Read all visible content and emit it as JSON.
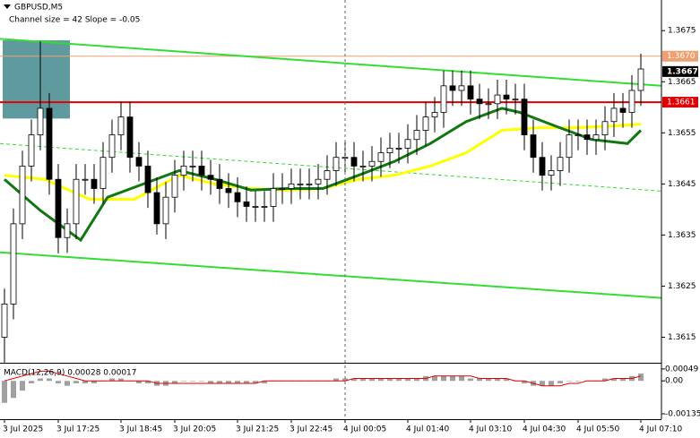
{
  "chart_data": [
    {
      "type": "candlestick",
      "title": "GBPUSD,M5",
      "subtitle": "Channel size = 42 Slope = -0.05",
      "open": [
        1.3615,
        1.36215,
        1.36372,
        1.36485,
        1.36546,
        1.36598,
        1.36459,
        1.36345,
        1.36372,
        1.36459,
        1.36459,
        1.36441,
        1.36502,
        1.36546,
        1.36581,
        1.36502,
        1.36485,
        1.36433,
        1.36372,
        1.36424,
        1.36467,
        1.36485,
        1.36485,
        1.36467,
        1.36459,
        1.36441,
        1.36433,
        1.36415,
        1.36406,
        1.36406,
        1.36406,
        1.36441,
        1.36441,
        1.3645,
        1.3645,
        1.3645,
        1.36459,
        1.36476,
        1.36502,
        1.36502,
        1.36485,
        1.36485,
        1.36494,
        1.36511,
        1.3652,
        1.3652,
        1.36537,
        1.36555,
        1.36581,
        1.3659,
        1.36642,
        1.36633,
        1.36642,
        1.36616,
        1.36607,
        1.36607,
        1.36624,
        1.36616,
        1.36616,
        1.36546,
        1.36502,
        1.36467,
        1.36476,
        1.36502,
        1.36546,
        1.36546,
        1.36537,
        1.36546,
        1.36572,
        1.36598,
        1.3659,
        1.36633
      ],
      "high": [
        1.36245,
        1.36402,
        1.36515,
        1.36576,
        1.36729,
        1.36628,
        1.36489,
        1.36402,
        1.36489,
        1.36489,
        1.36489,
        1.36532,
        1.36576,
        1.36611,
        1.36611,
        1.36532,
        1.36515,
        1.36463,
        1.36454,
        1.36497,
        1.36515,
        1.36515,
        1.36515,
        1.36497,
        1.36489,
        1.36471,
        1.36463,
        1.36445,
        1.36436,
        1.36436,
        1.36471,
        1.36471,
        1.3648,
        1.3648,
        1.3648,
        1.36489,
        1.36506,
        1.36532,
        1.36532,
        1.36532,
        1.36515,
        1.36524,
        1.36541,
        1.3655,
        1.3655,
        1.36567,
        1.36585,
        1.36611,
        1.3662,
        1.36672,
        1.36672,
        1.36672,
        1.36672,
        1.36646,
        1.36637,
        1.36654,
        1.36654,
        1.36646,
        1.36646,
        1.36576,
        1.36532,
        1.36506,
        1.36532,
        1.36576,
        1.36576,
        1.36576,
        1.36576,
        1.36602,
        1.36628,
        1.36628,
        1.36663,
        1.36705
      ],
      "low": [
        1.361,
        1.36185,
        1.36342,
        1.36455,
        1.36516,
        1.36429,
        1.36314,
        1.36315,
        1.36342,
        1.36429,
        1.36411,
        1.36411,
        1.36472,
        1.36516,
        1.36472,
        1.36455,
        1.36403,
        1.36351,
        1.36342,
        1.36394,
        1.36437,
        1.36455,
        1.36437,
        1.36429,
        1.36411,
        1.36403,
        1.36385,
        1.36376,
        1.36376,
        1.36376,
        1.36376,
        1.36411,
        1.36411,
        1.3642,
        1.3642,
        1.3642,
        1.36429,
        1.36446,
        1.36472,
        1.36455,
        1.36455,
        1.36455,
        1.36464,
        1.36481,
        1.3649,
        1.3649,
        1.36507,
        1.36525,
        1.36551,
        1.3656,
        1.36603,
        1.36603,
        1.36586,
        1.36577,
        1.36577,
        1.36577,
        1.36586,
        1.36586,
        1.36516,
        1.36472,
        1.36437,
        1.36437,
        1.36446,
        1.36472,
        1.36516,
        1.36507,
        1.36507,
        1.36516,
        1.36542,
        1.3656,
        1.3656,
        1.36603
      ],
      "close": [
        1.36215,
        1.36372,
        1.36485,
        1.36546,
        1.36598,
        1.36459,
        1.36345,
        1.36372,
        1.36459,
        1.36459,
        1.36441,
        1.36502,
        1.36546,
        1.36581,
        1.36502,
        1.36485,
        1.36433,
        1.36372,
        1.36424,
        1.36467,
        1.36485,
        1.36485,
        1.36467,
        1.36459,
        1.36441,
        1.36433,
        1.36415,
        1.36406,
        1.36406,
        1.36406,
        1.36441,
        1.36441,
        1.3645,
        1.3645,
        1.3645,
        1.36459,
        1.36476,
        1.36502,
        1.36502,
        1.36485,
        1.36485,
        1.36494,
        1.36511,
        1.3652,
        1.3652,
        1.36537,
        1.36555,
        1.36581,
        1.3659,
        1.36642,
        1.36633,
        1.36642,
        1.36616,
        1.36607,
        1.36607,
        1.36624,
        1.36616,
        1.36616,
        1.36546,
        1.36502,
        1.36467,
        1.36476,
        1.36502,
        1.36546,
        1.36546,
        1.36537,
        1.36546,
        1.36572,
        1.36598,
        1.3659,
        1.36633,
        1.36675
      ],
      "up_color": "#ffffff",
      "down_color": "#000000",
      "xlim": [
        -0.5,
        73.3
      ],
      "xticks": [
        {
          "value": 0,
          "label": "3 Jul 2025"
        },
        {
          "value": 6,
          "label": "3 Jul 17:25"
        },
        {
          "value": 13,
          "label": "3 Jul 18:45"
        },
        {
          "value": 19,
          "label": "3 Jul 20:05"
        },
        {
          "value": 26,
          "label": "3 Jul 21:25"
        },
        {
          "value": 32,
          "label": "3 Jul 22:45"
        },
        {
          "value": 38,
          "label": "4 Jul 00:05"
        },
        {
          "value": 45,
          "label": "4 Jul 01:40"
        },
        {
          "value": 52,
          "label": "4 Jul 03:10"
        },
        {
          "value": 58,
          "label": "4 Jul 04:30"
        },
        {
          "value": 64,
          "label": "4 Jul 05:50"
        },
        {
          "value": 71,
          "label": "4 Jul 07:10"
        }
      ],
      "ylim": [
        1.361,
        1.3681
      ],
      "yticks": [
        1.3615,
        1.3625,
        1.3635,
        1.3645,
        1.3655,
        1.3665,
        1.3675
      ],
      "zone": {
        "color": "#5f9a9e",
        "x": [
          -0.2,
          7.3
        ],
        "values": [
          1.36578,
          1.36731
        ]
      },
      "lines": [
        {
          "color": "#33dd33",
          "width": 2,
          "dash": false,
          "x": [
            -0.5,
            73.3
          ],
          "values": [
            1.36734,
            1.36642
          ]
        },
        {
          "color": "#33dd33",
          "width": 2,
          "dash": false,
          "x": [
            -0.5,
            73.3
          ],
          "values": [
            1.36316,
            1.36227
          ]
        },
        {
          "color": "#33dd33",
          "width": 1,
          "dash": true,
          "x": [
            -0.5,
            73.3
          ],
          "values": [
            1.36529,
            1.36436
          ]
        },
        {
          "color": "#ffff00",
          "width": 3,
          "dash": false,
          "x": [
            0,
            4.5,
            9.5,
            14.5,
            19.5,
            23.5,
            27.5,
            31.5,
            35.5,
            39.5,
            43.5,
            47.5,
            51.5,
            55.5,
            59.5,
            63.5,
            67.5,
            71
          ],
          "values": [
            1.36467,
            1.36459,
            1.3642,
            1.3642,
            1.36467,
            1.3645,
            1.36441,
            1.36438,
            1.36441,
            1.36459,
            1.36467,
            1.36485,
            1.36511,
            1.36555,
            1.3656,
            1.3656,
            1.36563,
            1.36567
          ]
        },
        {
          "color": "#117711",
          "width": 3,
          "dash": false,
          "x": [
            0,
            4,
            8.5,
            11.5,
            15.5,
            19.5,
            23.5,
            27.5,
            31.5,
            35.5,
            39.5,
            43.5,
            47.5,
            51.5,
            55.5,
            57.5,
            61.5,
            65.5,
            69.5,
            71
          ],
          "values": [
            1.36459,
            1.36398,
            1.3634,
            1.36424,
            1.3645,
            1.36476,
            1.36459,
            1.36438,
            1.36441,
            1.36441,
            1.36467,
            1.36494,
            1.36529,
            1.36572,
            1.36598,
            1.3659,
            1.36563,
            1.36537,
            1.36529,
            1.36555
          ]
        }
      ],
      "levels": [
        {
          "value": 1.367,
          "label": "1.3670",
          "color": "#f0a070"
        },
        {
          "value": 1.3661,
          "label": "1.3661",
          "color": "#e00000"
        }
      ],
      "last_price": {
        "value": 1.3667,
        "label": "1.3667",
        "color": "#000000"
      },
      "session_line": 38
    },
    {
      "type": "macd",
      "title": "MACD(12,26,9) 0.00028 0.00017",
      "values": [
        -0.0009,
        -0.0007,
        -0.0004,
        -0.0001,
        0.0001,
        0.0001,
        -0.0001,
        -0.0002,
        -0.0001,
        -0.0001,
        -0.0001,
        0,
        0.0001,
        0.0001,
        0,
        -0.0001,
        -0.0001,
        -0.0002,
        -0.0002,
        -0.0001,
        0,
        0,
        0,
        -0.0001,
        -0.0001,
        -0.0001,
        -0.0001,
        -0.0001,
        -0.0001,
        -0.0001,
        0,
        0,
        0,
        0,
        0,
        0,
        0,
        0.0001,
        0.0001,
        0.0001,
        0.0001,
        0.0001,
        0.0001,
        0.0001,
        0.0001,
        0.0001,
        0.0001,
        0.0002,
        0.0002,
        0.0002,
        0.0002,
        0.0002,
        0.0001,
        0.0001,
        0.0001,
        0.0001,
        0.0001,
        0,
        -0.0001,
        -0.0002,
        -0.0002,
        -0.0002,
        -0.0001,
        0,
        0,
        0,
        0,
        0.0001,
        0.0001,
        0.0001,
        0.0002,
        0.0003
      ],
      "signal": [
        0,
        0.0001,
        0.0002,
        0.0003,
        0.0004,
        0.0004,
        0.0003,
        0.0002,
        0.0001,
        0,
        0,
        0,
        0,
        0,
        0,
        0,
        0,
        -0.0001,
        -0.0001,
        -0.0001,
        -0.0001,
        -0.0001,
        -0.0001,
        -0.0001,
        -0.0001,
        -0.0001,
        -0.0001,
        -0.0001,
        -0.0001,
        0,
        0,
        0,
        0,
        0,
        0,
        0,
        0,
        0,
        0,
        0.0001,
        0.0001,
        0.0001,
        0.0001,
        0.0001,
        0.0001,
        0.0001,
        0.0001,
        0.0001,
        0.0002,
        0.0002,
        0.0002,
        0.0002,
        0.0002,
        0.0001,
        0.0001,
        0.0001,
        0.0001,
        0,
        0,
        -0.0001,
        -0.0002,
        -0.0002,
        -0.0002,
        -0.0001,
        -0.0001,
        0,
        0,
        0,
        0.0001,
        0.0001,
        0.0001,
        0.0002
      ],
      "color": "#a0a0a0",
      "signal_color": "#e00000",
      "ylim": [
        -0.00157,
        0.00067
      ],
      "yticks": [
        0.00049,
        {
          "value": 0,
          "label": "0.00"
        },
        -0.00135
      ]
    }
  ]
}
